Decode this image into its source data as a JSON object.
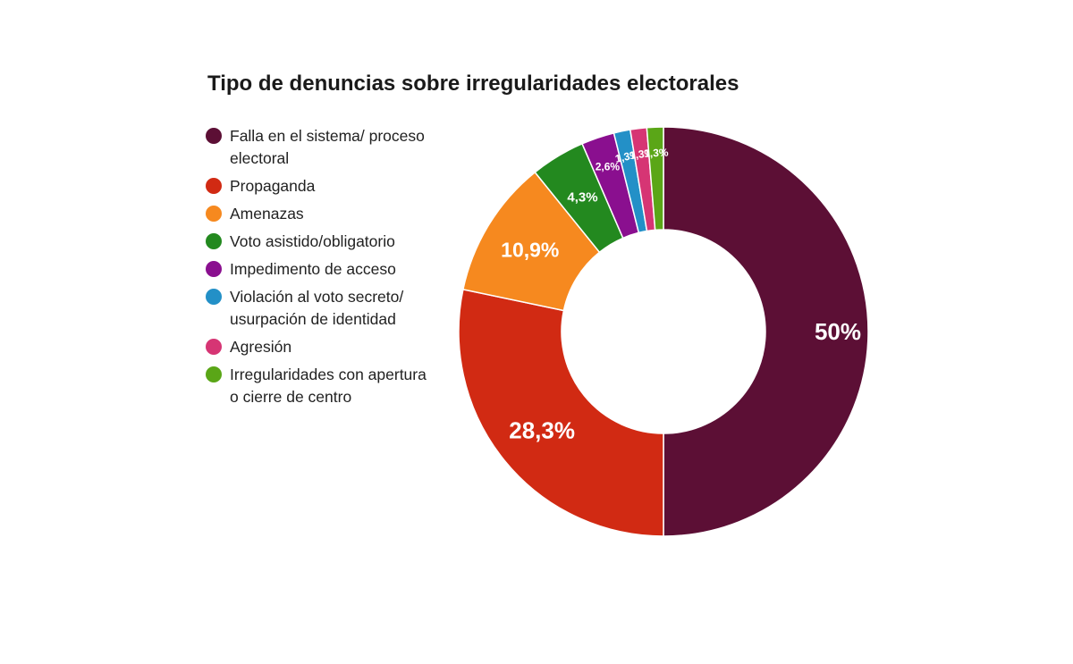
{
  "chart_data": {
    "type": "pie",
    "donut": true,
    "title": "Tipo de denuncias sobre irregularidades electorales",
    "legend_position": "left",
    "categories": [
      "Falla en el sistema/ proceso electoral",
      "Propaganda",
      "Amenazas",
      "Voto asistido/obligatorio",
      "Impedimento de acceso",
      "Violación al voto secreto/ usurpación de identidad",
      "Agresión",
      "Irregularidades con apertura o cierre de centro"
    ],
    "values": [
      50,
      28.3,
      10.9,
      4.3,
      2.6,
      1.3,
      1.3,
      1.3
    ],
    "data_labels": [
      "50%",
      "28,3%",
      "10,9%",
      "4,3%",
      "2,6%",
      "1,3%",
      "1,3%",
      "1,3%"
    ],
    "colors": [
      "#5c0f35",
      "#d12a13",
      "#f6891f",
      "#23891f",
      "#8a0f8f",
      "#2390c7",
      "#d63574",
      "#5aa617"
    ]
  }
}
